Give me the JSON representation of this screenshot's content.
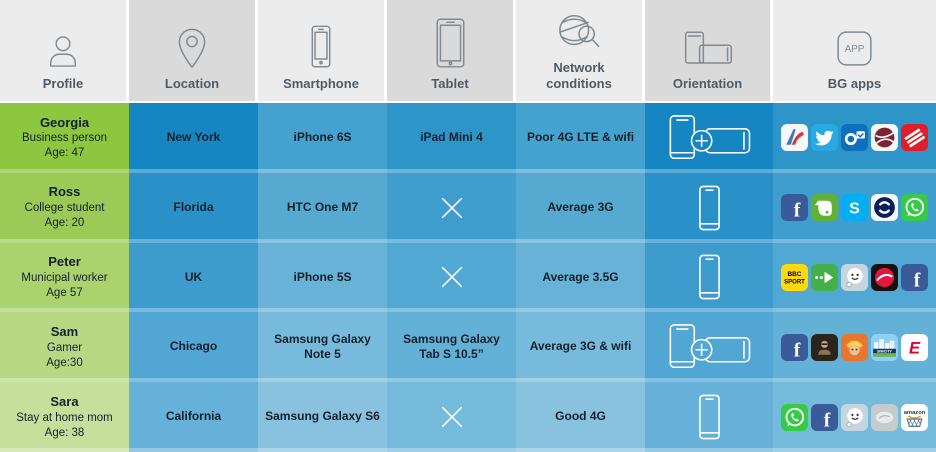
{
  "chart_data": {
    "type": "table",
    "columns": [
      {
        "id": "profile",
        "label": "Profile",
        "icon": "person-icon"
      },
      {
        "id": "location",
        "label": "Location",
        "icon": "pin-icon"
      },
      {
        "id": "smartphone",
        "label": "Smartphone",
        "icon": "smartphone-icon"
      },
      {
        "id": "tablet",
        "label": "Tablet",
        "icon": "tablet-icon"
      },
      {
        "id": "network",
        "label": "Network conditions",
        "icon": "network-conditions-icon"
      },
      {
        "id": "orientation",
        "label": "Orientation",
        "icon": "orientation-icon"
      },
      {
        "id": "bgapps",
        "label": "BG apps",
        "icon": "app-badge-icon"
      }
    ],
    "rows": [
      {
        "profile": {
          "name": "Georgia",
          "role": "Business person",
          "age": "Age: 47"
        },
        "location": "New York",
        "smartphone": "iPhone 6S",
        "tablet": "iPad Mini 4",
        "network": "Poor 4G LTE & wifi",
        "orientation": "both",
        "apps": [
          "american-airlines",
          "twitter",
          "outlook",
          "maroon-emblem",
          "bank-of-america"
        ]
      },
      {
        "profile": {
          "name": "Ross",
          "role": "College student",
          "age": "Age: 20"
        },
        "location": "Florida",
        "smartphone": "HTC One M7",
        "tablet": null,
        "network": "Average 3G",
        "orientation": "portrait",
        "apps": [
          "facebook",
          "evernote",
          "skype",
          "shazam",
          "whatsapp"
        ]
      },
      {
        "profile": {
          "name": "Peter",
          "role": "Municipal worker",
          "age": "Age 57"
        },
        "location": "UK",
        "smartphone": "iPhone 5S",
        "tablet": null,
        "network": "Average 3.5G",
        "orientation": "portrait",
        "apps": [
          "bbc-sport",
          "citymapper",
          "waze",
          "pizza-hut",
          "facebook"
        ]
      },
      {
        "profile": {
          "name": "Sam",
          "role": "Gamer",
          "age": "Age:30"
        },
        "location": "Chicago",
        "smartphone": "Samsung Galaxy Note 5",
        "tablet": "Samsung Galaxy Tab S 10.5”",
        "network": "Average 3G & wifi",
        "orientation": "both",
        "apps": [
          "facebook",
          "call-of-duty",
          "clash-of-clans",
          "simcity",
          "espn"
        ]
      },
      {
        "profile": {
          "name": "Sara",
          "role": "Stay at home mom",
          "age": "Age: 38"
        },
        "location": "California",
        "smartphone": "Samsung Galaxy S6",
        "tablet": null,
        "network": "Good 4G",
        "orientation": "portrait",
        "apps": [
          "whatsapp",
          "facebook",
          "waze",
          "gray-emblem",
          "amazon"
        ]
      }
    ]
  },
  "header_badge_text": "APP",
  "no_tablet_symbol": "✕",
  "colors": {
    "header_light": "#ececec",
    "header_dark": "#dadada",
    "header_text": "#4e5b66",
    "cell_text": "#14212c",
    "row_separator": "rgba(255,255,255,0.3)",
    "green": [
      "#8dc63f",
      "#9bcb56",
      "#aad26d",
      "#b8d884",
      "#c6df9b"
    ],
    "blue_dark": [
      "#1586c2",
      "#2a90c8",
      "#3e9bce",
      "#52a6d4",
      "#66b1d9"
    ],
    "blue_mid": [
      "#2d95c8",
      "#3f9ecd",
      "#51a8d2",
      "#63b1d7",
      "#75bbdc"
    ],
    "blue_light": [
      "#45a2ce",
      "#56aad2",
      "#67b2d6",
      "#78badb",
      "#89c2df"
    ]
  },
  "apps": {
    "american-airlines": {
      "bg": "#f6f7f8"
    },
    "twitter": {
      "bg": "#29a9e1"
    },
    "outlook": {
      "bg": "#0e6fc0"
    },
    "maroon-emblem": {
      "bg": "#f6f7f8"
    },
    "bank-of-america": {
      "bg": "#e01e2b"
    },
    "facebook": {
      "bg": "#3a5a98",
      "text": "f"
    },
    "evernote": {
      "bg": "#61b234"
    },
    "skype": {
      "bg": "#00aff0",
      "text": "S"
    },
    "shazam": {
      "bg": "#f6f7f8"
    },
    "whatsapp": {
      "bg": "#34cc45"
    },
    "bbc-sport": {
      "bg": "#fed90f",
      "text": "BBC SPORT"
    },
    "citymapper": {
      "bg": "#45b04a"
    },
    "waze": {
      "bg": "#c6d6de"
    },
    "pizza-hut": {
      "bg": "#17120f"
    },
    "call-of-duty": {
      "bg": "#2a241d"
    },
    "clash-of-clans": {
      "bg": "#e8762c"
    },
    "simcity": {
      "bg": "#8fd0f2",
      "text": "SIMCITY"
    },
    "espn": {
      "bg": "#ffffff",
      "text": "E"
    },
    "gray-emblem": {
      "bg": "#c6cbce"
    },
    "amazon": {
      "bg": "#ffffff",
      "text": "amazon"
    }
  }
}
